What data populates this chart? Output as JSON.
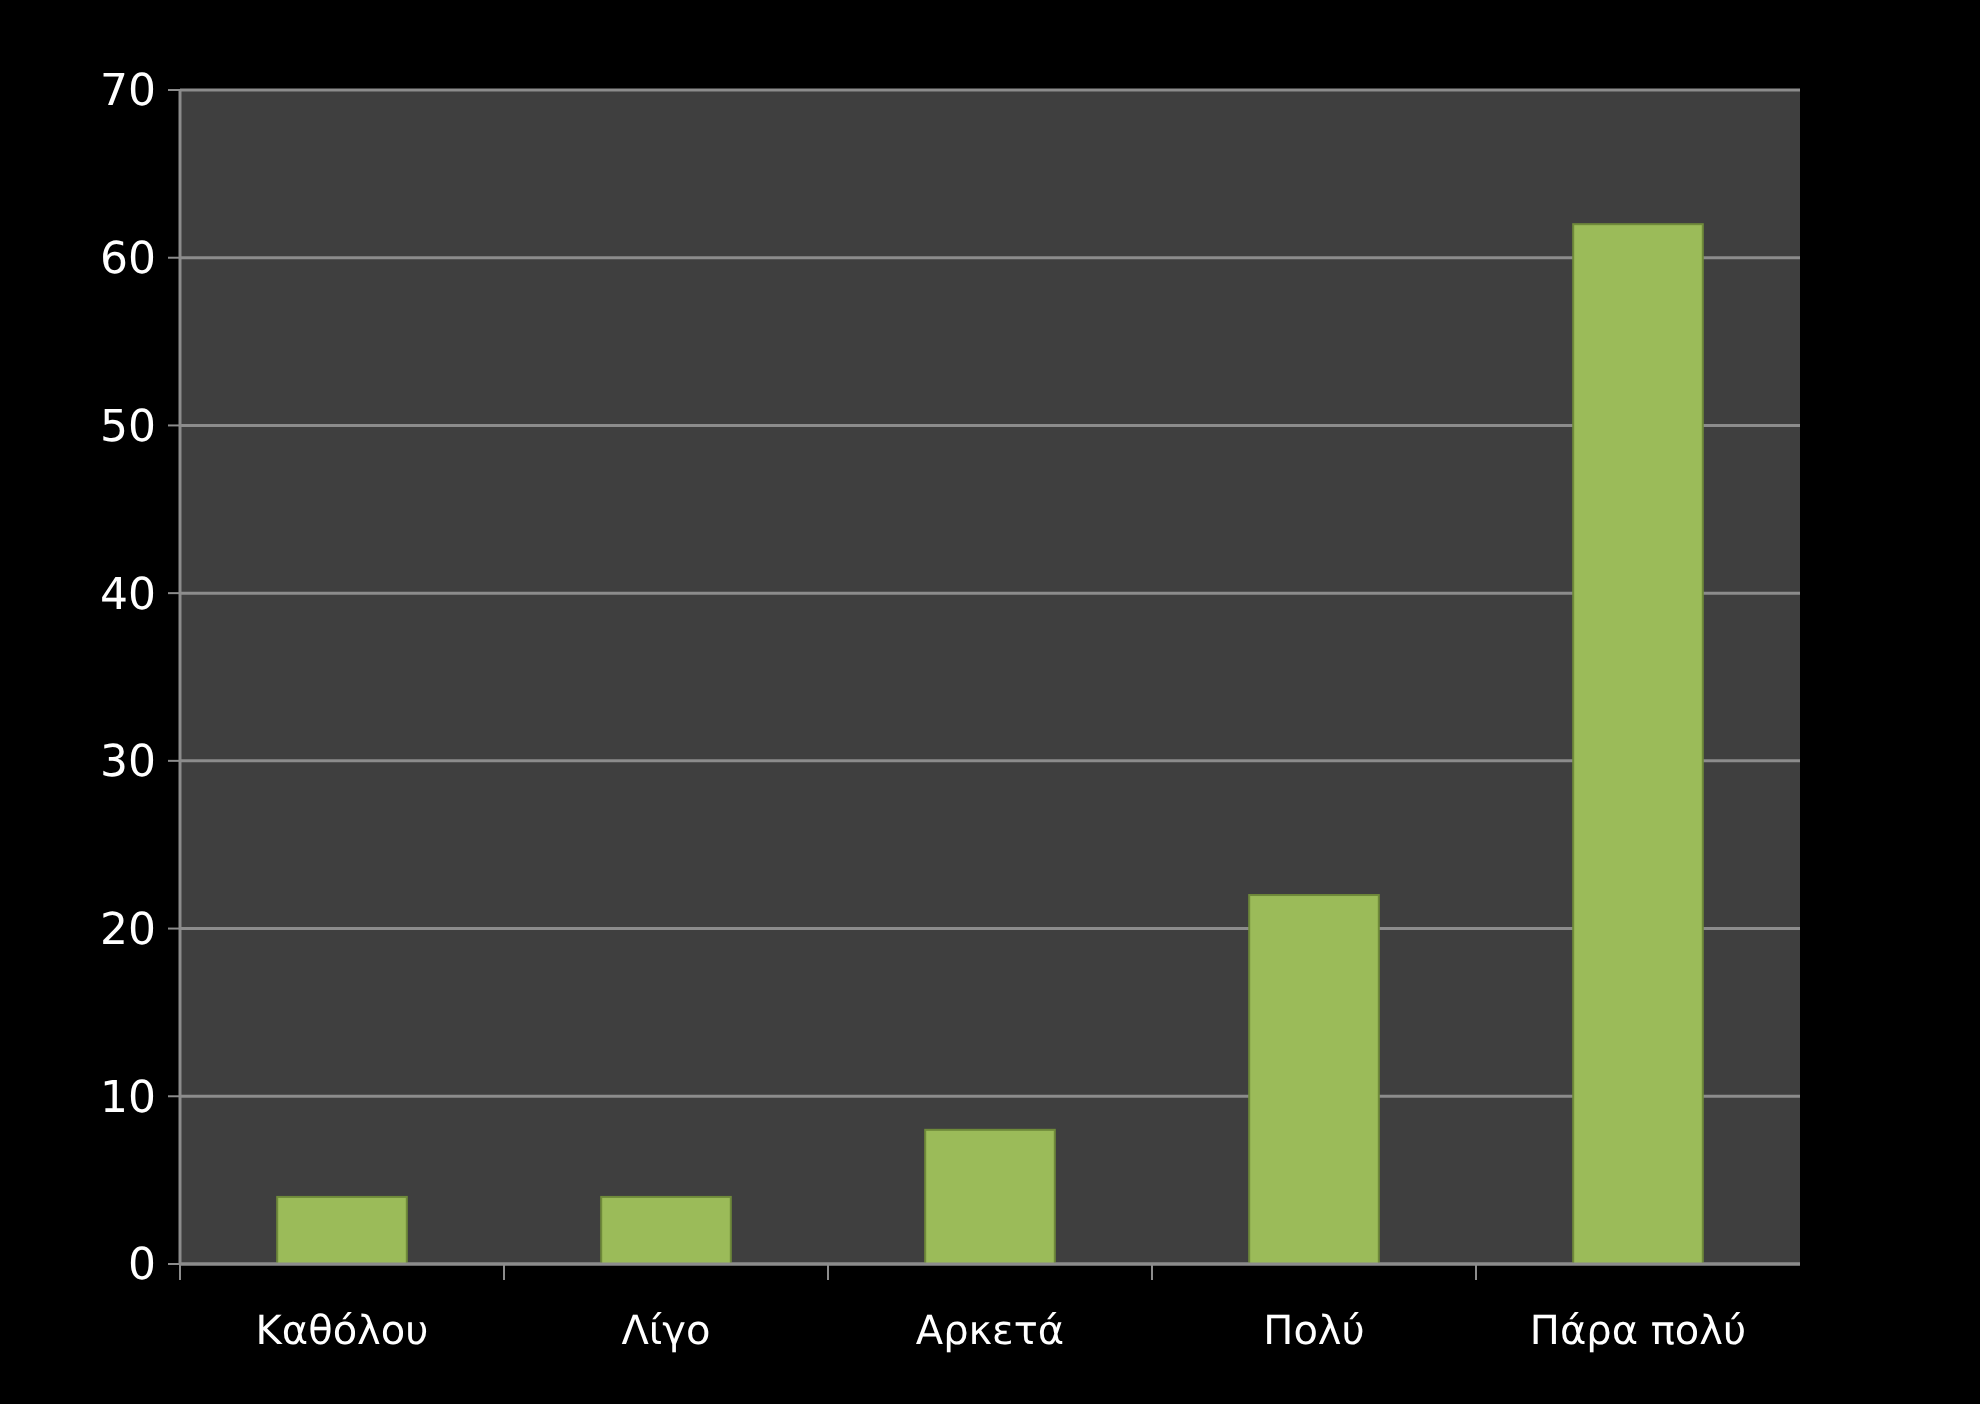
{
  "chart_data": {
    "type": "bar",
    "categories": [
      "Καθόλου",
      "Λίγο",
      "Αρκετά",
      "Πολύ",
      "Πάρα πολύ"
    ],
    "values": [
      4,
      4,
      8,
      22,
      62
    ],
    "color": "#9bbb59",
    "ylim": [
      0,
      70
    ],
    "yticks": [
      0,
      10,
      20,
      30,
      40,
      50,
      60,
      70
    ],
    "grid": "y"
  }
}
